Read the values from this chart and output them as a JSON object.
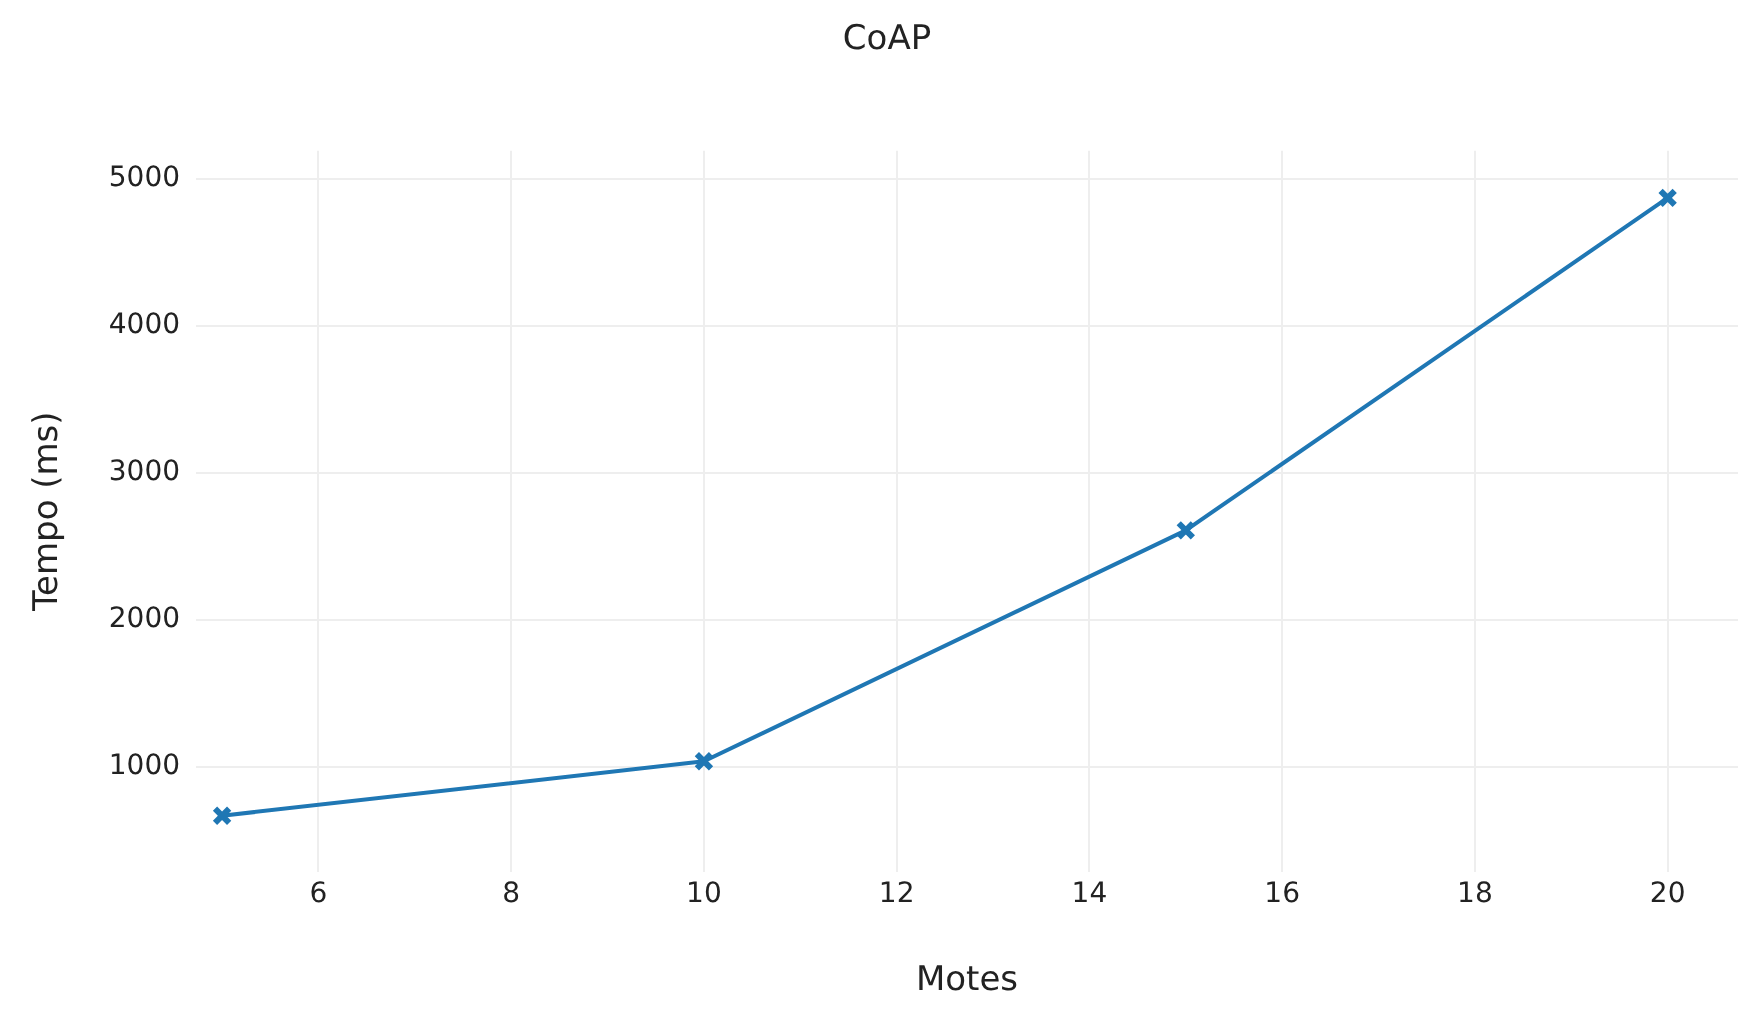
{
  "chart_data": {
    "type": "line",
    "title": "CoAP",
    "xlabel": "Motes",
    "ylabel": "Tempo (ms)",
    "x": [
      5,
      10,
      15,
      20
    ],
    "series": [
      {
        "color": "#1f77b4",
        "values": [
          670,
          1040,
          2610,
          4870
        ]
      }
    ],
    "xlim": [
      4.73,
      20.73
    ],
    "xticks": [
      6,
      8,
      10,
      12,
      14,
      16,
      18,
      20
    ],
    "ylim": [
      290,
      5190
    ],
    "yticks": [
      1000,
      2000,
      3000,
      4000,
      5000
    ],
    "grid": true,
    "legend": false,
    "marker": "cross",
    "line_style": "solid"
  }
}
